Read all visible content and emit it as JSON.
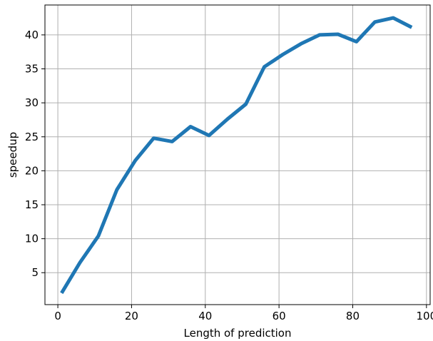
{
  "chart_data": {
    "type": "line",
    "title": "",
    "xlabel": "Length of prediction",
    "ylabel": "speedup",
    "xlim": [
      -3.5,
      101
    ],
    "ylim": [
      0.3,
      44.4
    ],
    "x_ticks": [
      0,
      20,
      40,
      60,
      80,
      100
    ],
    "y_ticks": [
      5,
      10,
      15,
      20,
      25,
      30,
      35,
      40
    ],
    "grid": true,
    "series": [
      {
        "color": "#1f77b4",
        "x": [
          1,
          6,
          11,
          16,
          21,
          26,
          31,
          36,
          41,
          46,
          51,
          56,
          61,
          66,
          71,
          76,
          81,
          86,
          91,
          96
        ],
        "y": [
          2.0,
          6.5,
          10.4,
          17.2,
          21.5,
          24.8,
          24.3,
          26.5,
          25.2,
          27.6,
          29.8,
          35.3,
          37.1,
          38.7,
          40.0,
          40.1,
          39.0,
          41.9,
          42.5,
          41.1
        ]
      }
    ]
  }
}
